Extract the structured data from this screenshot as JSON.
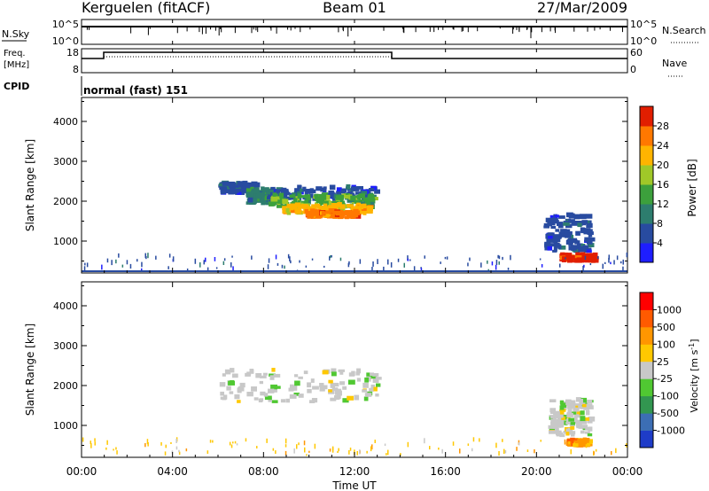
{
  "header": {
    "station": "Kerguelen (fitACF)",
    "beam": "Beam 01",
    "date": "27/Mar/2009"
  },
  "sky_panel": {
    "left_label": "N.Sky",
    "right_label": "N.Search",
    "ticks_left": [
      "10^5",
      "10^0"
    ],
    "ticks_right": [
      "10^5",
      "10^0"
    ]
  },
  "freq_panel": {
    "left_label_1": "Freq.",
    "left_label_2": "[MHz]",
    "right_label": "Nave",
    "ticks_left": [
      "18",
      "8"
    ],
    "ticks_right": [
      "60",
      "0"
    ]
  },
  "cpid": {
    "label": "CPID",
    "value": "normal (fast) 151"
  },
  "time_axis": {
    "label": "Time UT",
    "ticks": [
      "00:00",
      "04:00",
      "08:00",
      "12:00",
      "16:00",
      "20:00",
      "00:00"
    ]
  },
  "power_colorbar": {
    "label": "Power [dB]",
    "ticks": [
      "4",
      "8",
      "12",
      "16",
      "20",
      "24",
      "28"
    ],
    "colors": [
      "#1e1eff",
      "#284ba0",
      "#2d7d6e",
      "#3ca03c",
      "#a0c828",
      "#ffb400",
      "#ff7800",
      "#e11e00"
    ]
  },
  "velocity_colorbar": {
    "label": "Velocity [m s^-1]",
    "ticks": [
      "1000",
      "500",
      "100",
      "25",
      "-25",
      "-100",
      "-500",
      "-1000"
    ],
    "colors": [
      "#1e3cc8",
      "#3c6eb4",
      "#329650",
      "#50c832",
      "#c8c8c8",
      "#ffc800",
      "#ff9600",
      "#ff5a00",
      "#ff0000"
    ]
  },
  "chart_data": [
    {
      "type": "heatmap",
      "name": "power",
      "ylabel": "Slant Range [km]",
      "xlabel": "",
      "yticks": [
        1000,
        2000,
        3000,
        4000
      ],
      "ylim": [
        200,
        4600
      ],
      "xlim_hours": [
        0,
        24
      ],
      "regions": [
        {
          "t0": 6.0,
          "t1": 7.6,
          "r0": 2150,
          "r1": 2400,
          "level": 1
        },
        {
          "t0": 7.2,
          "t1": 8.6,
          "r0": 1900,
          "r1": 2250,
          "level": 2
        },
        {
          "t0": 8.1,
          "t1": 13.0,
          "r0": 2000,
          "r1": 2300,
          "level": 1
        },
        {
          "t0": 8.2,
          "t1": 12.8,
          "r0": 1800,
          "r1": 2100,
          "level": 3
        },
        {
          "t0": 8.8,
          "t1": 12.6,
          "r0": 1650,
          "r1": 1850,
          "level": 5
        },
        {
          "t0": 9.8,
          "t1": 12.0,
          "r0": 1550,
          "r1": 1700,
          "level": 6
        },
        {
          "t0": 20.3,
          "t1": 22.3,
          "r0": 700,
          "r1": 1600,
          "level": 1
        },
        {
          "t0": 21.0,
          "t1": 22.5,
          "r0": 450,
          "r1": 600,
          "level": 7
        },
        {
          "t0": 0.0,
          "t1": 24.0,
          "r0": 230,
          "r1": 600,
          "level": 1
        }
      ]
    },
    {
      "type": "heatmap",
      "name": "velocity",
      "ylabel": "Slant Range [km]",
      "xlabel": "Time UT",
      "yticks": [
        1000,
        2000,
        3000,
        4000
      ],
      "ylim": [
        200,
        4600
      ],
      "xlim_hours": [
        0,
        24
      ],
      "regions": [
        {
          "t0": 6.0,
          "t1": 13.0,
          "r0": 1550,
          "r1": 2350,
          "level": 4
        },
        {
          "t0": 20.5,
          "t1": 22.3,
          "r0": 700,
          "r1": 1600,
          "level": 4
        },
        {
          "t0": 21.3,
          "t1": 22.2,
          "r0": 450,
          "r1": 580,
          "level": 6
        },
        {
          "t0": 0.0,
          "t1": 24.0,
          "r0": 230,
          "r1": 600,
          "level": 5
        }
      ]
    }
  ]
}
